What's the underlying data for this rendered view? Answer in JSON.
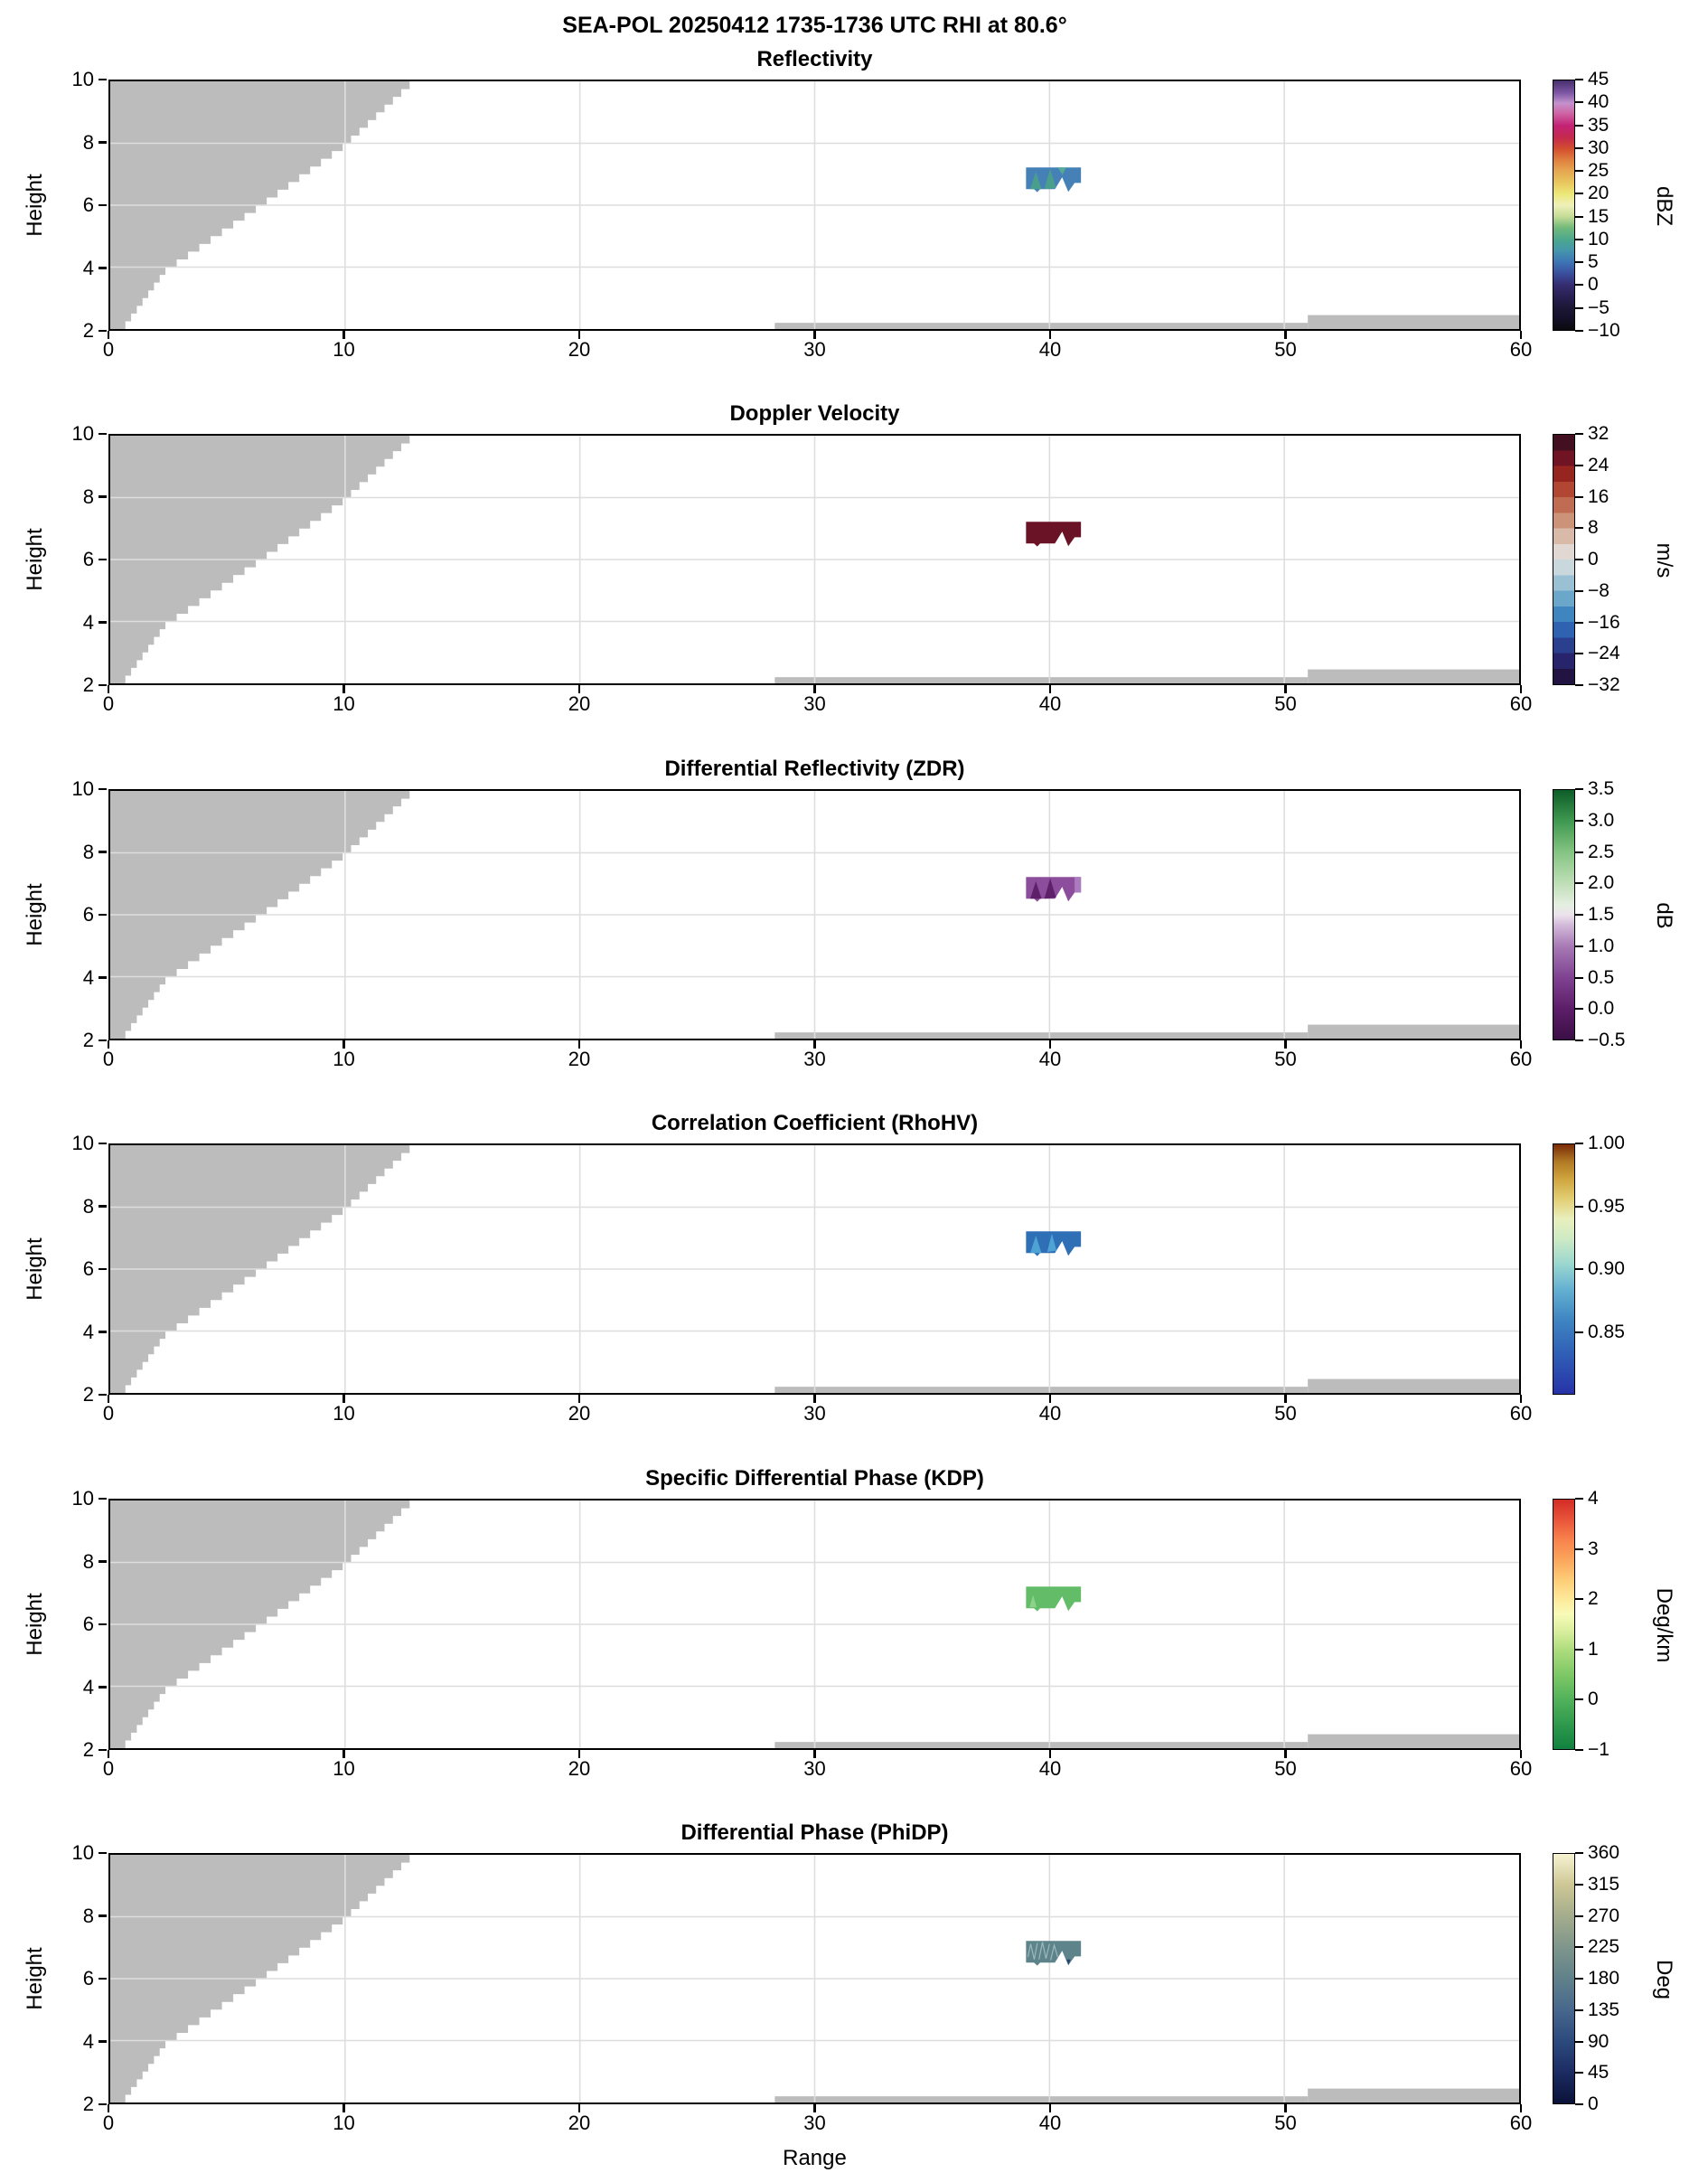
{
  "title": "SEA-POL 20250412 1735-1736 UTC RHI at 80.6°",
  "axes": {
    "ylabel": "Height",
    "xlabel": "Range",
    "ytick_labels": [
      "10",
      "8",
      "6",
      "4",
      "2"
    ],
    "ytick_values": [
      10,
      8,
      6,
      4,
      2
    ],
    "xtick_labels": [
      "0",
      "10",
      "20",
      "30",
      "40",
      "50",
      "60"
    ],
    "xtick_values": [
      0,
      10,
      20,
      30,
      40,
      50,
      60
    ],
    "xlim": [
      0,
      60
    ],
    "ylim": [
      2,
      10
    ],
    "x_gridlines": [
      10,
      20,
      30,
      40,
      50
    ],
    "y_gridlines": [
      4,
      6,
      8
    ]
  },
  "colors": {
    "background": "#ffffff",
    "blocked_gray": "#bcbcbc",
    "gridline": "#dedede",
    "axis": "#000000"
  },
  "panels": [
    {
      "title": "Reflectivity",
      "colorbar": {
        "unit": "dBZ",
        "vmin": -10,
        "vmax": 45,
        "ticks": [
          {
            "label": "45",
            "v": 45
          },
          {
            "label": "40",
            "v": 40
          },
          {
            "label": "35",
            "v": 35
          },
          {
            "label": "30",
            "v": 30
          },
          {
            "label": "25",
            "v": 25
          },
          {
            "label": "20",
            "v": 20
          },
          {
            "label": "15",
            "v": 15
          },
          {
            "label": "10",
            "v": 10
          },
          {
            "label": "5",
            "v": 5
          },
          {
            "label": "0",
            "v": 0
          },
          {
            "label": "−5",
            "v": -5
          },
          {
            "label": "−10",
            "v": -10
          }
        ],
        "gradient": [
          [
            0,
            "#0a0a0d"
          ],
          [
            0.05,
            "#15102a"
          ],
          [
            0.09,
            "#1d1736"
          ],
          [
            0.14,
            "#2a2157"
          ],
          [
            0.18,
            "#352c70"
          ],
          [
            0.22,
            "#3a4a97"
          ],
          [
            0.27,
            "#3d73b5"
          ],
          [
            0.32,
            "#4597ab"
          ],
          [
            0.36,
            "#4aa78e"
          ],
          [
            0.41,
            "#72b97b"
          ],
          [
            0.455,
            "#c5dc96"
          ],
          [
            0.5,
            "#eff0ba"
          ],
          [
            0.545,
            "#ece878"
          ],
          [
            0.59,
            "#e9c75e"
          ],
          [
            0.636,
            "#e5a751"
          ],
          [
            0.68,
            "#e08140"
          ],
          [
            0.727,
            "#d24e2e"
          ],
          [
            0.77,
            "#c52a4b"
          ],
          [
            0.818,
            "#c32274"
          ],
          [
            0.87,
            "#cf66a6"
          ],
          [
            0.909,
            "#c392cc"
          ],
          [
            0.95,
            "#7e57a6"
          ],
          [
            1,
            "#46306a"
          ]
        ]
      },
      "echo": {
        "fill": "#4581b6",
        "value_approx": "5 to 12 dBZ",
        "accents": [
          {
            "type": "fill",
            "color": "#4a9f8c",
            "pts": [
              [
                39.18,
                6.52
              ],
              [
                39.42,
                7.08
              ],
              [
                39.66,
                6.52
              ]
            ]
          },
          {
            "type": "fill",
            "color": "#4a9f8c",
            "pts": [
              [
                39.78,
                6.52
              ],
              [
                40.03,
                7.18
              ],
              [
                40.28,
                6.55
              ]
            ]
          },
          {
            "type": "fill",
            "color": "#55ab97",
            "pts": [
              [
                40.35,
                7.22
              ],
              [
                40.7,
                7.22
              ],
              [
                40.55,
                6.98
              ]
            ]
          }
        ]
      }
    },
    {
      "title": "Doppler Velocity",
      "colorbar": {
        "unit": "m/s",
        "vmin": -32,
        "vmax": 32,
        "ticks": [
          {
            "label": "32",
            "v": 32
          },
          {
            "label": "24",
            "v": 24
          },
          {
            "label": "16",
            "v": 16
          },
          {
            "label": "8",
            "v": 8
          },
          {
            "label": "0",
            "v": 0
          },
          {
            "label": "−8",
            "v": -8
          },
          {
            "label": "−16",
            "v": -16
          },
          {
            "label": "−24",
            "v": -24
          },
          {
            "label": "−32",
            "v": -32
          }
        ],
        "discrete_colors": [
          "#221442",
          "#27246b",
          "#2b3f8f",
          "#2f62b0",
          "#3f86c0",
          "#6aa7cb",
          "#99c1d3",
          "#c8d8dc",
          "#e2d8d3",
          "#d9b9a8",
          "#cc9379",
          "#c06c52",
          "#b14633",
          "#97251f",
          "#701423",
          "#431022"
        ]
      },
      "echo": {
        "fill": "#6b1326",
        "value_approx": "+26 to +30 m/s",
        "accents": []
      }
    },
    {
      "title": "Differential Reflectivity (ZDR)",
      "colorbar": {
        "unit": "dB",
        "vmin": -0.5,
        "vmax": 3.5,
        "ticks": [
          {
            "label": "3.5",
            "v": 3.5
          },
          {
            "label": "3.0",
            "v": 3.0
          },
          {
            "label": "2.5",
            "v": 2.5
          },
          {
            "label": "2.0",
            "v": 2.0
          },
          {
            "label": "1.5",
            "v": 1.5
          },
          {
            "label": "1.0",
            "v": 1.0
          },
          {
            "label": "0.5",
            "v": 0.5
          },
          {
            "label": "0.0",
            "v": 0.0
          },
          {
            "label": "−0.5",
            "v": -0.5
          }
        ],
        "gradient": [
          [
            0,
            "#3a0e45"
          ],
          [
            0.125,
            "#5d1e69"
          ],
          [
            0.25,
            "#7f4392"
          ],
          [
            0.375,
            "#a87bb5"
          ],
          [
            0.46,
            "#d3bada"
          ],
          [
            0.5,
            "#ece4ed"
          ],
          [
            0.54,
            "#e4eee0"
          ],
          [
            0.625,
            "#bfdfb7"
          ],
          [
            0.75,
            "#85c483"
          ],
          [
            0.875,
            "#3f9950"
          ],
          [
            1,
            "#0c5c27"
          ]
        ]
      },
      "echo": {
        "fill": "#8b4d9c",
        "value_approx": "0.0 to 0.8 dB",
        "accents": [
          {
            "type": "fill",
            "color": "#5e2069",
            "pts": [
              [
                39.18,
                6.52
              ],
              [
                39.42,
                7.08
              ],
              [
                39.66,
                6.52
              ]
            ]
          },
          {
            "type": "fill",
            "color": "#5e2069",
            "pts": [
              [
                39.78,
                6.52
              ],
              [
                40.03,
                7.18
              ],
              [
                40.28,
                6.55
              ]
            ]
          },
          {
            "type": "fill",
            "color": "#ab7cbd",
            "pts": [
              [
                41.07,
                7.22
              ],
              [
                41.34,
                7.22
              ],
              [
                41.34,
                6.72
              ],
              [
                41.07,
                6.72
              ]
            ]
          }
        ]
      }
    },
    {
      "title": "Correlation Coefficient (RhoHV)",
      "colorbar": {
        "unit": "",
        "vmin": 0.8,
        "vmax": 1.0,
        "ticks": [
          {
            "label": "1.00",
            "v": 1.0
          },
          {
            "label": "0.95",
            "v": 0.95
          },
          {
            "label": "0.90",
            "v": 0.9
          },
          {
            "label": "0.85",
            "v": 0.85
          }
        ],
        "gradient": [
          [
            0,
            "#2733a8"
          ],
          [
            0.15,
            "#2f5cb5"
          ],
          [
            0.3,
            "#3f86c2"
          ],
          [
            0.42,
            "#65b1d2"
          ],
          [
            0.52,
            "#9ad7cf"
          ],
          [
            0.62,
            "#cdeac4"
          ],
          [
            0.7,
            "#e9efbe"
          ],
          [
            0.78,
            "#e2cf75"
          ],
          [
            0.86,
            "#d0a53e"
          ],
          [
            0.93,
            "#b17a24"
          ],
          [
            1,
            "#7a2c08"
          ]
        ]
      },
      "echo": {
        "fill": "#2e6fb5",
        "value_approx": "0.82 to 0.87",
        "accents": [
          {
            "type": "fill",
            "color": "#4ea3d4",
            "pts": [
              [
                39.18,
                6.52
              ],
              [
                39.42,
                7.08
              ],
              [
                39.66,
                6.52
              ]
            ]
          },
          {
            "type": "fill",
            "color": "#4ea3d4",
            "pts": [
              [
                39.9,
                6.55
              ],
              [
                40.1,
                7.15
              ],
              [
                40.3,
                6.6
              ]
            ]
          }
        ]
      }
    },
    {
      "title": "Specific Differential Phase (KDP)",
      "colorbar": {
        "unit": "Deg/km",
        "vmin": -1,
        "vmax": 4,
        "ticks": [
          {
            "label": "4",
            "v": 4
          },
          {
            "label": "3",
            "v": 3
          },
          {
            "label": "2",
            "v": 2
          },
          {
            "label": "1",
            "v": 1
          },
          {
            "label": "0",
            "v": 0
          },
          {
            "label": "−1",
            "v": -1
          }
        ],
        "gradient": [
          [
            0,
            "#11813f"
          ],
          [
            0.1,
            "#2f9a4e"
          ],
          [
            0.2,
            "#52b25b"
          ],
          [
            0.3,
            "#7fc866"
          ],
          [
            0.4,
            "#afdd7e"
          ],
          [
            0.48,
            "#ddf0a1"
          ],
          [
            0.54,
            "#f7fbb7"
          ],
          [
            0.6,
            "#fee99b"
          ],
          [
            0.68,
            "#fdcc76"
          ],
          [
            0.76,
            "#fba55c"
          ],
          [
            0.84,
            "#f8824c"
          ],
          [
            0.92,
            "#e9543a"
          ],
          [
            1,
            "#d22c26"
          ]
        ]
      },
      "echo": {
        "fill": "#63bd68",
        "value_approx": "0.2 to 0.5 Deg/km",
        "accents": [
          {
            "type": "fill",
            "color": "#8ed189",
            "pts": [
              [
                39.15,
                6.55
              ],
              [
                39.3,
                6.95
              ],
              [
                39.45,
                6.55
              ]
            ]
          }
        ]
      }
    },
    {
      "title": "Differential Phase (PhiDP)",
      "colorbar": {
        "unit": "Deg",
        "vmin": 0,
        "vmax": 360,
        "ticks": [
          {
            "label": "360",
            "v": 360
          },
          {
            "label": "315",
            "v": 315
          },
          {
            "label": "270",
            "v": 270
          },
          {
            "label": "225",
            "v": 225
          },
          {
            "label": "180",
            "v": 180
          },
          {
            "label": "135",
            "v": 135
          },
          {
            "label": "90",
            "v": 90
          },
          {
            "label": "45",
            "v": 45
          },
          {
            "label": "0",
            "v": 0
          }
        ],
        "gradient": [
          [
            0,
            "#0a1238"
          ],
          [
            0.125,
            "#1b2c63"
          ],
          [
            0.25,
            "#2c4a7d"
          ],
          [
            0.375,
            "#47678d"
          ],
          [
            0.5,
            "#60818a"
          ],
          [
            0.625,
            "#7e968c"
          ],
          [
            0.75,
            "#a4ac8c"
          ],
          [
            0.875,
            "#cdc795"
          ],
          [
            1,
            "#f7f3d2"
          ]
        ]
      },
      "echo": {
        "fill": "#5d838b",
        "value_approx": "180 to 210 Deg",
        "accents": [
          {
            "type": "stroke",
            "color": "#9db9ba",
            "width": 1.2,
            "pts": [
              [
                39.08,
                6.7
              ],
              [
                39.2,
                7.12
              ],
              [
                39.35,
                6.62
              ],
              [
                39.48,
                7.15
              ]
            ]
          },
          {
            "type": "stroke",
            "color": "#9db9ba",
            "width": 1.2,
            "pts": [
              [
                39.55,
                6.62
              ],
              [
                39.7,
                7.18
              ],
              [
                39.85,
                6.65
              ],
              [
                40.0,
                7.12
              ]
            ]
          },
          {
            "type": "stroke",
            "color": "#9db9ba",
            "width": 1.2,
            "pts": [
              [
                40.05,
                6.6
              ],
              [
                40.2,
                7.08
              ],
              [
                40.35,
                6.7
              ]
            ]
          },
          {
            "type": "fill",
            "color": "#26456e",
            "pts": [
              [
                40.72,
                6.62
              ],
              [
                40.9,
                6.62
              ],
              [
                40.81,
                6.45
              ]
            ]
          }
        ]
      }
    }
  ],
  "chart_data": {
    "type": "heatmap",
    "subtype": "RHI radar cross-section, 6 stacked polarimetric variable panels sharing axes",
    "title": "SEA-POL 20250412 1735-1736 UTC RHI at 80.6°",
    "x": {
      "label": "Range",
      "range": [
        0,
        60
      ],
      "ticks": [
        0,
        10,
        20,
        30,
        40,
        50,
        60
      ]
    },
    "y": {
      "label": "Height",
      "range": [
        2,
        10
      ],
      "ticks": [
        2,
        4,
        6,
        8,
        10
      ]
    },
    "grid": "on",
    "blocked_region_edge": [
      [
        0.4,
        2
      ],
      [
        2.35,
        4
      ],
      [
        6.2,
        6
      ],
      [
        9.9,
        8
      ],
      [
        12.75,
        10
      ]
    ],
    "ground_strips": [
      {
        "range": [
          28.3,
          51.0
        ],
        "height": [
          2.0,
          2.2
        ]
      },
      {
        "range": [
          51.0,
          60.0
        ],
        "height": [
          2.0,
          2.45
        ]
      }
    ],
    "echo_region": {
      "range_extent": [
        39.0,
        41.34
      ],
      "height_extent": [
        6.42,
        7.22
      ]
    },
    "echo_polygon": [
      [
        39.0,
        7.22
      ],
      [
        41.34,
        7.22
      ],
      [
        41.34,
        6.72
      ],
      [
        41.07,
        6.72
      ],
      [
        40.8,
        6.43
      ],
      [
        40.54,
        6.9
      ],
      [
        40.23,
        6.52
      ],
      [
        39.6,
        6.52
      ],
      [
        39.48,
        6.42
      ],
      [
        39.34,
        6.52
      ],
      [
        39.0,
        6.52
      ]
    ],
    "panels": [
      {
        "variable": "Reflectivity",
        "unit": "dBZ",
        "scale": [
          -10,
          45
        ],
        "echo_value_approx": "5 to 12 dBZ"
      },
      {
        "variable": "Doppler Velocity",
        "unit": "m/s",
        "scale": [
          -32,
          32
        ],
        "echo_value_approx": "+26 to +30 m/s"
      },
      {
        "variable": "Differential Reflectivity (ZDR)",
        "unit": "dB",
        "scale": [
          -0.5,
          3.5
        ],
        "echo_value_approx": "0.0 to 0.8 dB"
      },
      {
        "variable": "Correlation Coefficient (RhoHV)",
        "unit": "",
        "scale": [
          0.8,
          1.0
        ],
        "echo_value_approx": "0.82 to 0.87"
      },
      {
        "variable": "Specific Differential Phase (KDP)",
        "unit": "Deg/km",
        "scale": [
          -1,
          4
        ],
        "echo_value_approx": "0.2 to 0.5 Deg/km"
      },
      {
        "variable": "Differential Phase (PhiDP)",
        "unit": "Deg",
        "scale": [
          0,
          360
        ],
        "echo_value_approx": "180 to 210 Deg"
      }
    ]
  }
}
